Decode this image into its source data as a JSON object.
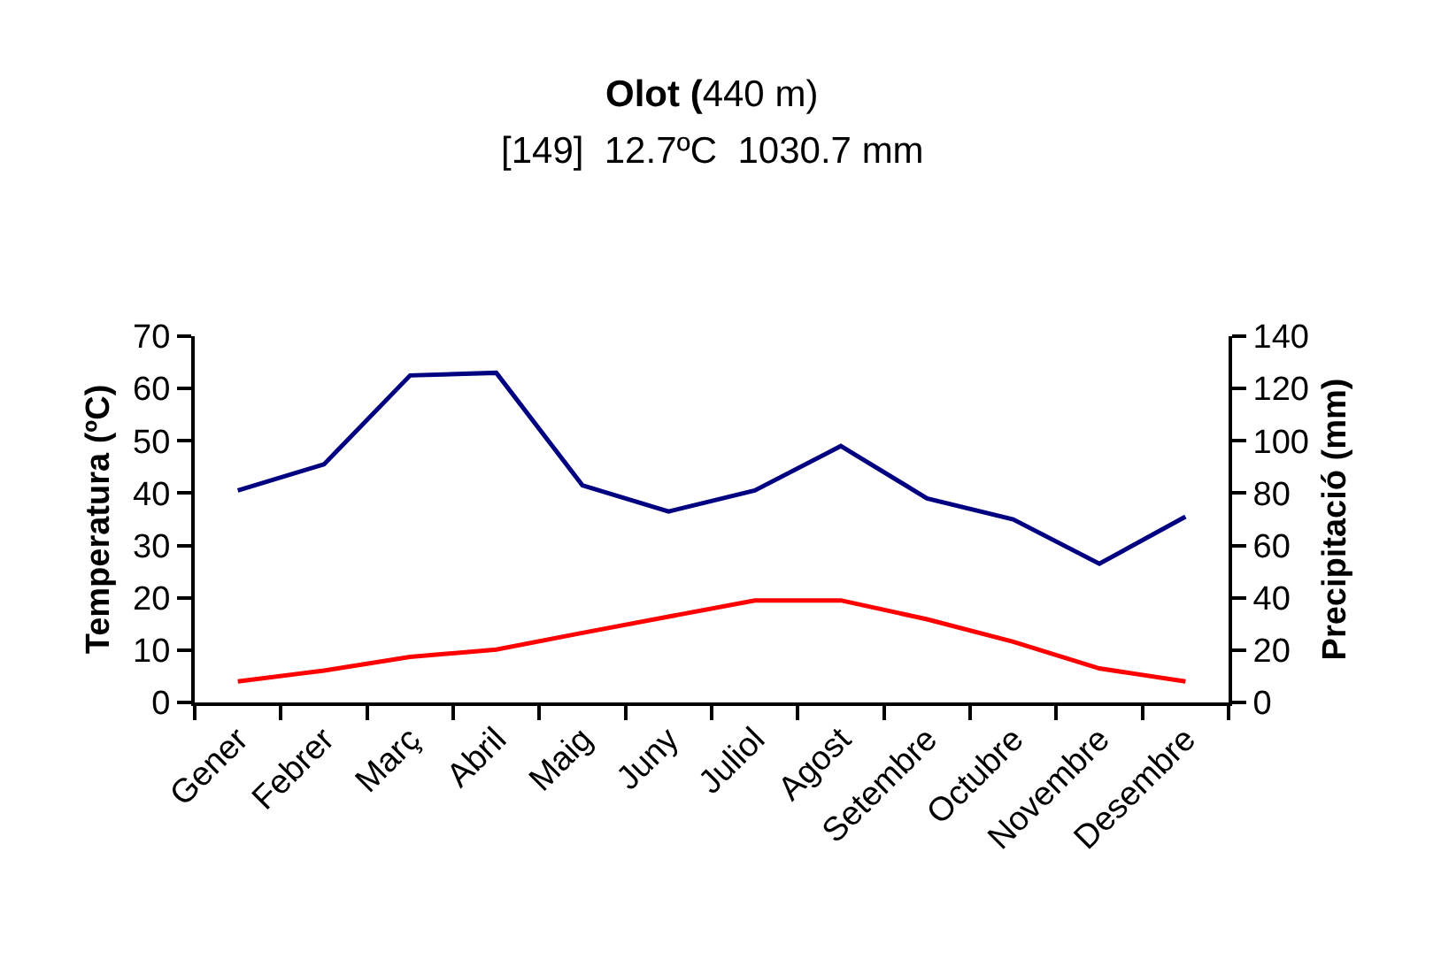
{
  "chart_data": {
    "type": "line",
    "title": "Olot (440 m)",
    "subtitle": "[149]  12.7ºC  1030.7 mm",
    "ylabel": "Temperatura (ºC)",
    "y2label": "Precipitació (mm)",
    "categories": [
      "Gener",
      "Febrer",
      "Març",
      "Abril",
      "Maig",
      "Juny",
      "Juliol",
      "Agost",
      "Setembre",
      "Octubre",
      "Novembre",
      "Desembre"
    ],
    "ylim": [
      0,
      70
    ],
    "yticks": [
      0,
      10,
      20,
      30,
      40,
      50,
      60,
      70
    ],
    "y2lim": [
      0,
      140
    ],
    "y2ticks": [
      0,
      20,
      40,
      60,
      80,
      100,
      120,
      140
    ],
    "marker": "none",
    "line_style": "solid",
    "series": [
      {
        "color": "#000080",
        "axis": "y2",
        "values": [
          81,
          91,
          125,
          126,
          83,
          73,
          81,
          98,
          78,
          70,
          53,
          71
        ]
      },
      {
        "color": "#ff0000",
        "values": [
          4.0,
          6.1,
          8.7,
          10.1,
          13.3,
          16.4,
          19.5,
          19.5,
          15.9,
          11.6,
          6.5,
          4.0
        ]
      }
    ]
  }
}
